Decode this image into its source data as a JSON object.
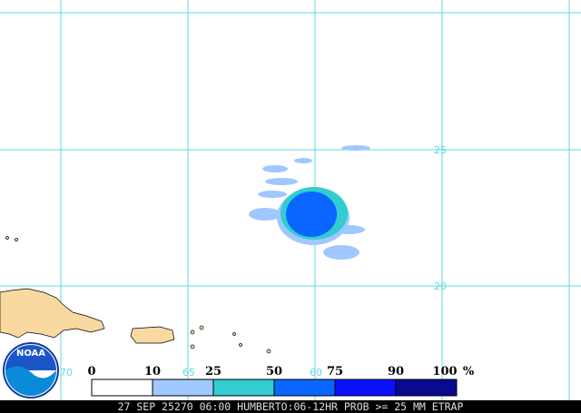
{
  "map": {
    "latitude_labels": [
      "25",
      "20"
    ],
    "longitude_labels": [
      "70",
      "65",
      "60"
    ]
  },
  "legend": {
    "labels": [
      "0",
      "10",
      "25",
      "50",
      "75",
      "90",
      "100"
    ],
    "unit": "%"
  },
  "logo": "NOAA",
  "caption": "27 SEP 25270 06:00 HUMBERTO:06-12HR PROB >= 25 MM ETRAP"
}
